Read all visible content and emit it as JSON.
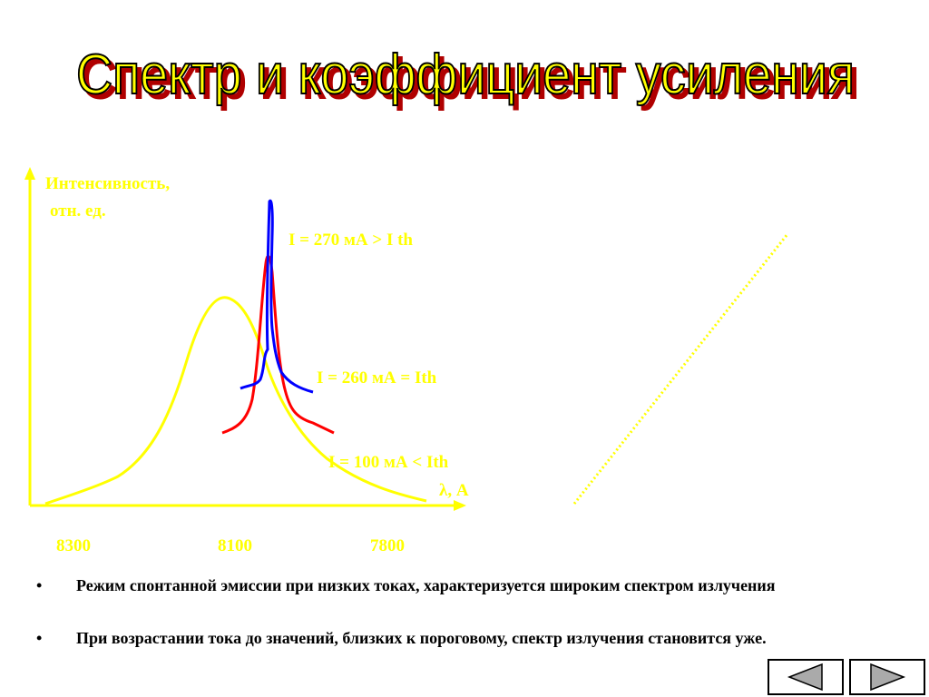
{
  "title": "Спектр и коэффициент усиления",
  "plot": {
    "y_label_lines": [
      "Интенсивность,",
      "отн. ед."
    ],
    "x_label": "λ, A",
    "x_ticks": [
      "8300",
      "8100",
      "7800"
    ],
    "curves": [
      {
        "label": "I = 270 мА > I th"
      },
      {
        "label": "I = 260 мА = Ith"
      },
      {
        "label": "I = 100 мА < Ith"
      }
    ]
  },
  "bullets": [
    "Режим спонтанной эмиссии при низких токах, характеризуется широким спектром излучения",
    "При возрастании тока до значений, близких к пороговому, спектр излучения становится уже."
  ]
}
